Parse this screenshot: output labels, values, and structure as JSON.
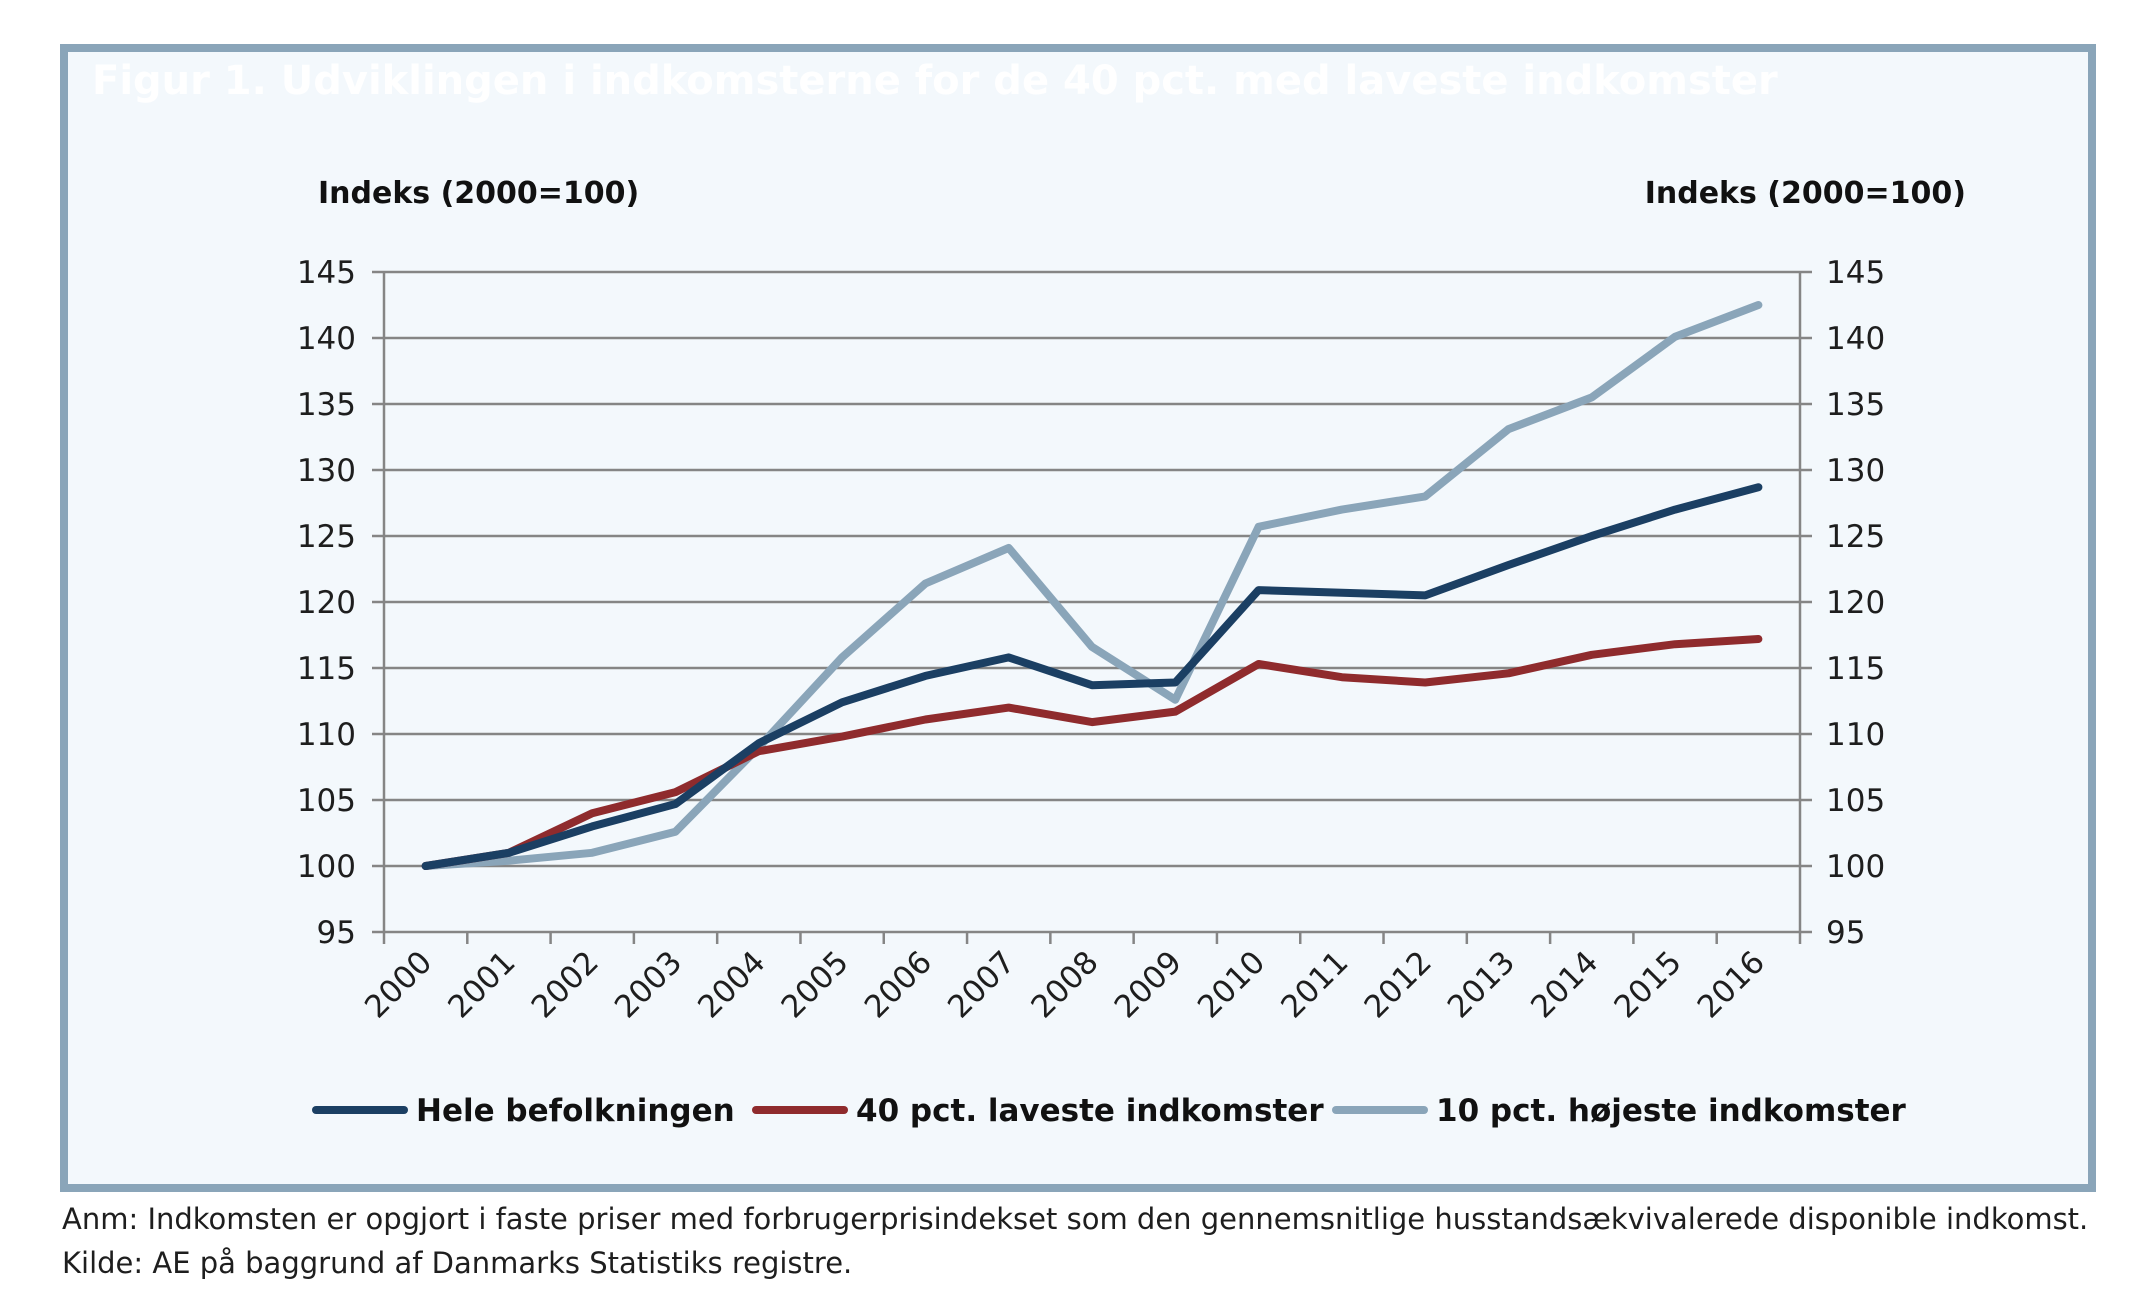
{
  "figure": {
    "title": "Figur 1. Udviklingen i indkomsterne for de 40 pct. med laveste indkomster",
    "note": "Anm: Indkomsten er opgjort i faste priser med forbrugerprisindekset som den gennemsnitlige husstandsækvivalerede disponible indkomst.",
    "source": "Kilde: AE på baggrund af Danmarks Statistiks registre."
  },
  "chart_data": {
    "type": "line",
    "ylabel_left": "Indeks (2000=100)",
    "ylabel_right": "Indeks (2000=100)",
    "ylim": [
      95,
      145
    ],
    "yticks": [
      95,
      100,
      105,
      110,
      115,
      120,
      125,
      130,
      135,
      140,
      145
    ],
    "grid": true,
    "legend_position": "bottom",
    "categories": [
      "2000",
      "2001",
      "2002",
      "2003",
      "2004",
      "2005",
      "2006",
      "2007",
      "2008",
      "2009",
      "2010",
      "2011",
      "2012",
      "2013",
      "2014",
      "2015",
      "2016"
    ],
    "series": [
      {
        "name": "Hele befolkningen",
        "color": "#1b3f63",
        "values": [
          100,
          101,
          103,
          104.7,
          109.3,
          112.4,
          114.4,
          115.8,
          113.7,
          113.9,
          120.9,
          120.7,
          120.5,
          122.8,
          125.0,
          127.0,
          128.7
        ]
      },
      {
        "name": "40 pct. laveste indkomster",
        "color": "#8f2b2d",
        "values": [
          100,
          101,
          104,
          105.6,
          108.7,
          109.8,
          111.1,
          112.0,
          110.9,
          111.7,
          115.3,
          114.3,
          113.9,
          114.6,
          116.0,
          116.8,
          117.2
        ]
      },
      {
        "name": "10 pct. højeste indkomster",
        "color": "#8aa5b9",
        "values": [
          100,
          100.4,
          101.0,
          102.6,
          109.0,
          115.8,
          121.4,
          124.1,
          116.6,
          112.6,
          125.7,
          127.0,
          128.0,
          133.1,
          135.5,
          140.1,
          142.5
        ]
      }
    ]
  }
}
